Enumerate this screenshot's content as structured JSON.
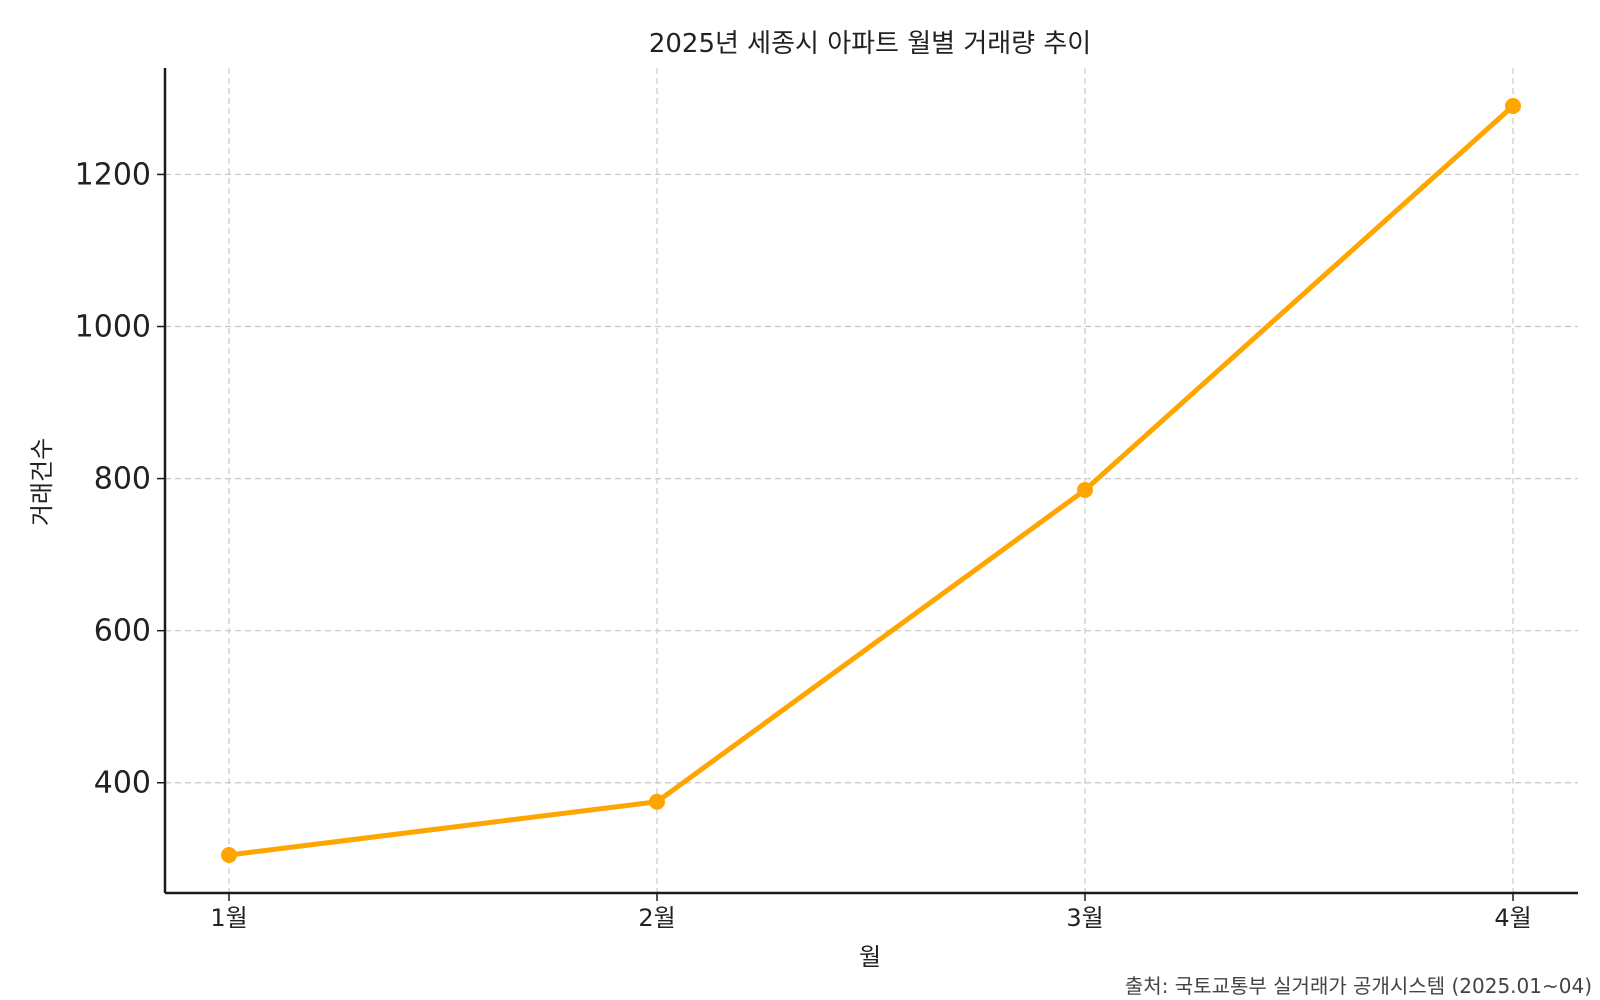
{
  "chart_data": {
    "type": "line",
    "title": "2025년 세종시 아파트 월별 거래량 추이",
    "xlabel": "월",
    "ylabel": "거래건수",
    "categories": [
      "1월",
      "2월",
      "3월",
      "4월"
    ],
    "series": [
      {
        "name": "",
        "values": [
          305,
          375,
          785,
          1290
        ],
        "color": "#FFA500"
      }
    ],
    "y_ticks": [
      400,
      600,
      800,
      1000,
      1200
    ],
    "y_tick_labels": [
      "400",
      "600",
      "800",
      "1000",
      "1200"
    ],
    "ylim": [
      255,
      1340
    ],
    "grid": true,
    "legend": "none",
    "source": "출처: 국토교통부 실거래가 공개시스템 (2025.01~04)"
  }
}
